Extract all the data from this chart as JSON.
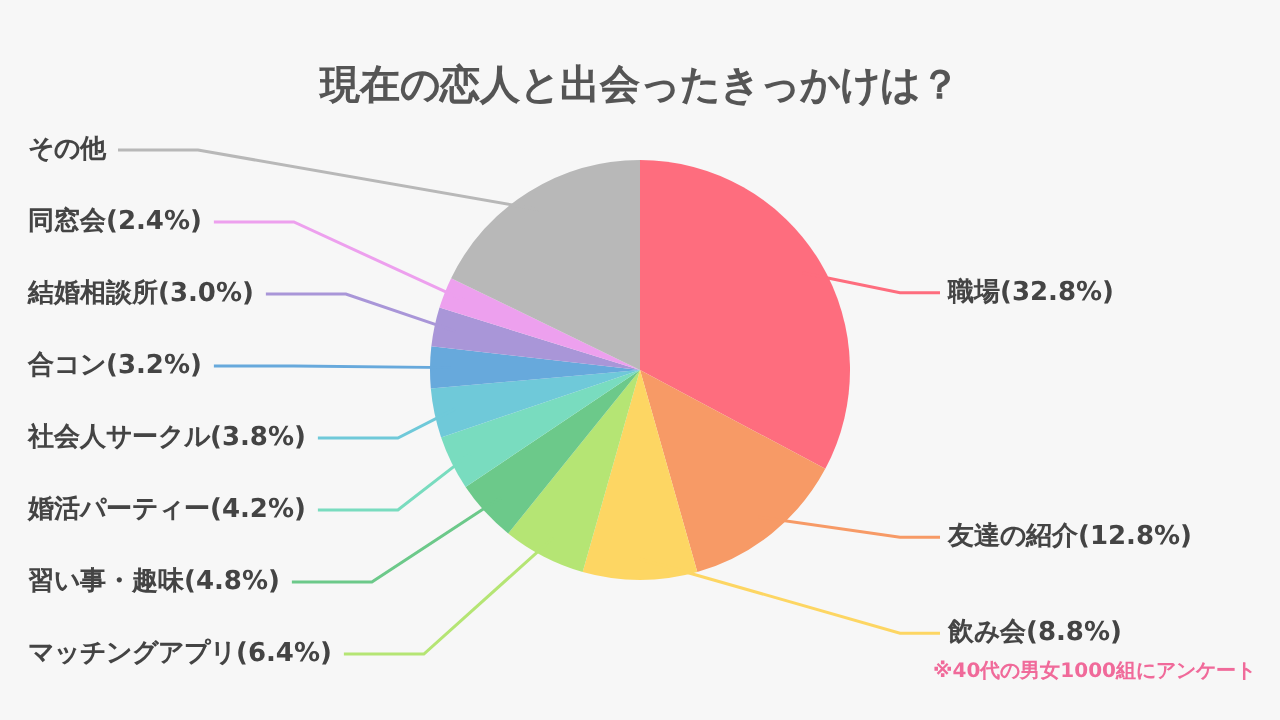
{
  "chart_data": {
    "type": "pie",
    "title": "現在の恋人と出会ったきっかけは？",
    "categories": [
      "職場",
      "友達の紹介",
      "飲み会",
      "マッチングアプリ",
      "習い事・趣味",
      "婚活パーティー",
      "社会人サークル",
      "合コン",
      "結婚相談所",
      "同窓会",
      "その他"
    ],
    "values": [
      32.8,
      12.8,
      8.8,
      6.4,
      4.8,
      4.2,
      3.8,
      3.2,
      3.0,
      2.4,
      17.8
    ],
    "value_labels": [
      "(32.8%)",
      "(12.8%)",
      "(8.8%)",
      "(6.4%)",
      "(4.8%)",
      "(4.2%)",
      "(3.8%)",
      "(3.2%)",
      "(3.0%)",
      "(2.4%)",
      null
    ],
    "colors": [
      "#fe6d7e",
      "#f79a66",
      "#fdd663",
      "#b5e574",
      "#6cc98a",
      "#79dcbf",
      "#6fc9d9",
      "#67a9dc",
      "#a996d8",
      "#eda0ee",
      "#b8b8b8"
    ],
    "annotations": [
      "※40代の男女1000組にアンケート"
    ],
    "legend": false
  }
}
